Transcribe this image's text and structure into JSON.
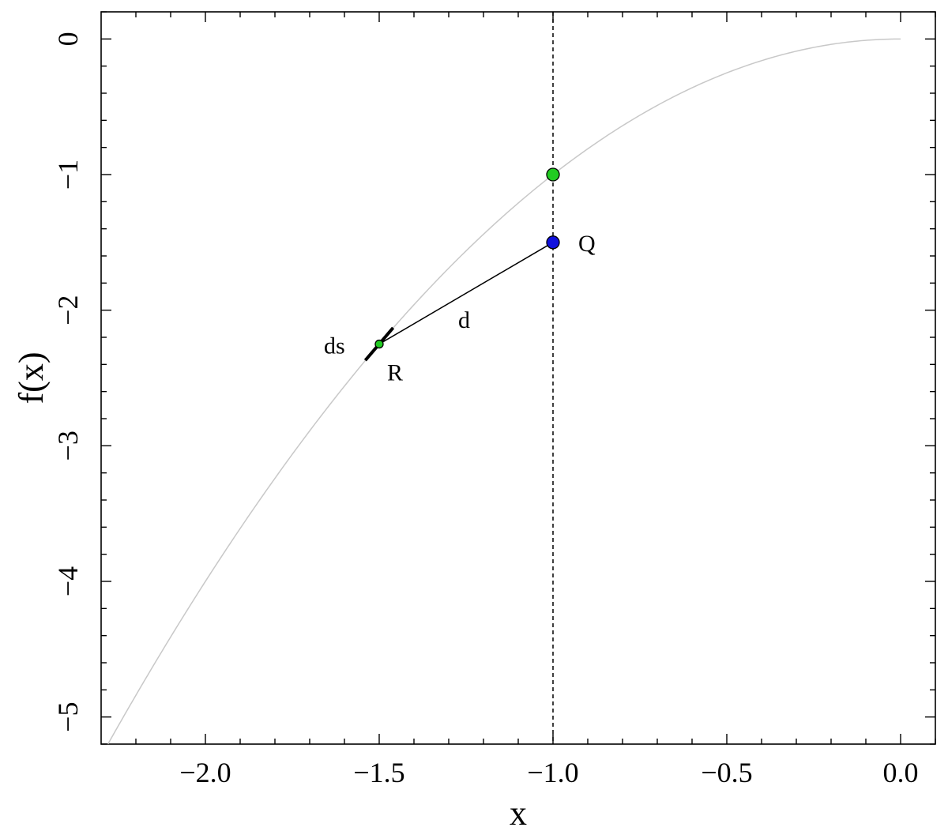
{
  "chart_data": {
    "type": "line",
    "xlabel": "x",
    "ylabel": "f(x)",
    "xlim": [
      -2.3,
      0.1
    ],
    "ylim": [
      -5.2,
      0.2
    ],
    "grid": false,
    "x_ticks": [
      -2.0,
      -1.5,
      -1.0,
      -0.5,
      0.0
    ],
    "x_tick_labels": [
      "−2.0",
      "−1.5",
      "−1.0",
      "−0.5",
      "0.0"
    ],
    "y_ticks": [
      0,
      -1,
      -2,
      -3,
      -4,
      -5
    ],
    "y_tick_labels": [
      "0",
      "−1",
      "−2",
      "−3",
      "−4",
      "−5"
    ],
    "curve": {
      "function": "f(x) = -x^2",
      "x_range": [
        -2.28,
        0.0
      ],
      "color": "#c8c8c8"
    },
    "vertical_line_x": -1.0,
    "points": [
      {
        "x": -1.0,
        "y": -1.0,
        "color": "#22cc22",
        "label": ""
      },
      {
        "x": -1.0,
        "y": -1.5,
        "color": "#1111dd",
        "label": "Q"
      },
      {
        "x": -1.5,
        "y": -2.25,
        "color": "#22cc22",
        "label": "R"
      }
    ],
    "segment_d": {
      "from": [
        -1.5,
        -2.25
      ],
      "to": [
        -1.0,
        -1.5
      ],
      "label": "d"
    },
    "segment_ds": {
      "center": [
        -1.5,
        -2.25
      ],
      "half_dx": 0.04,
      "label": "ds"
    }
  }
}
